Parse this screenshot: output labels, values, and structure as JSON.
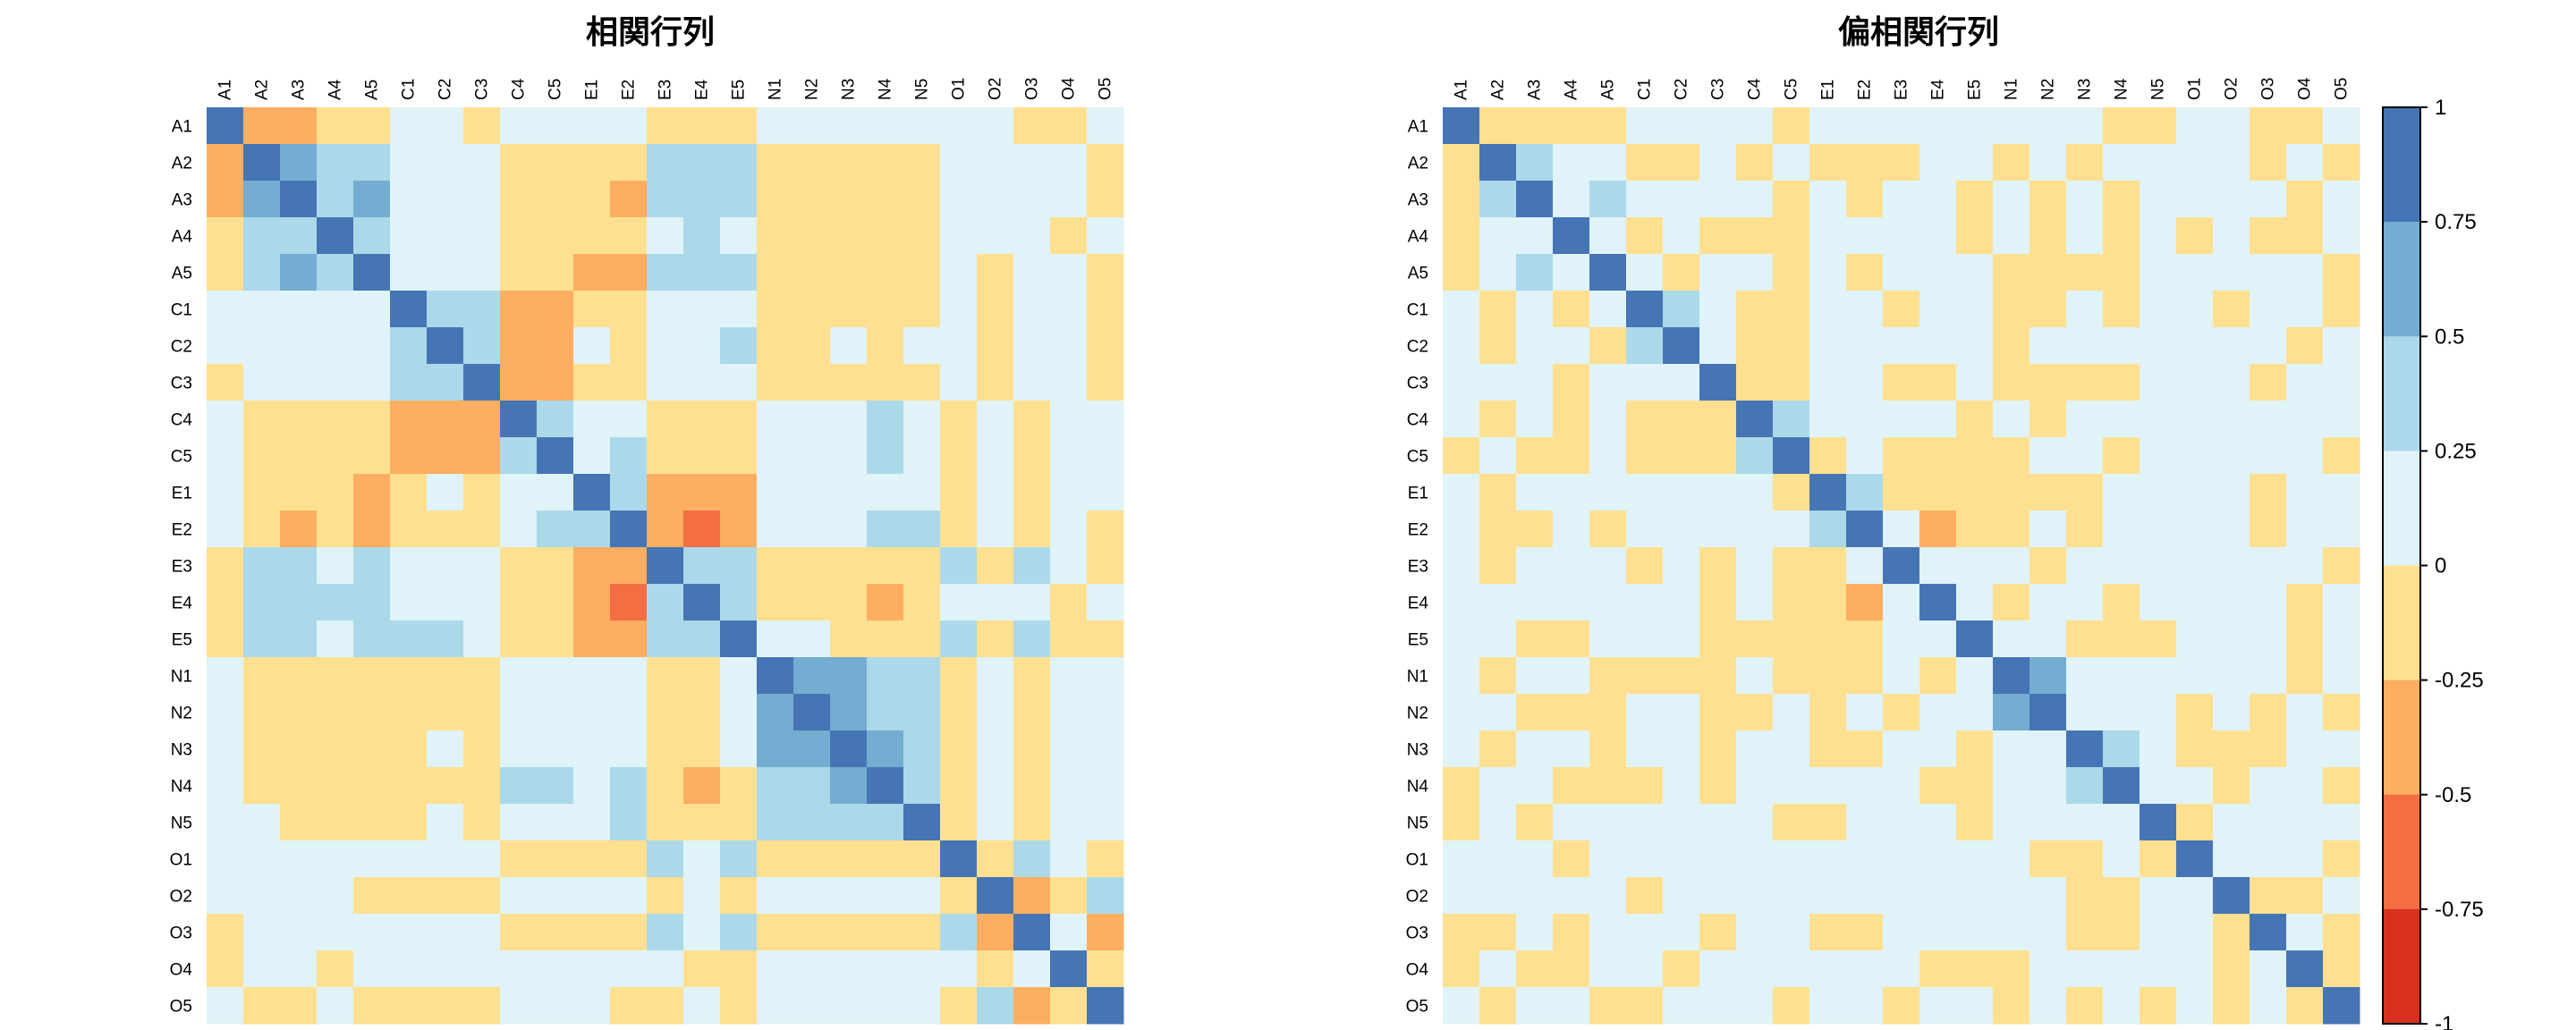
{
  "palette": {
    "bins": [
      -1,
      -0.75,
      -0.5,
      -0.25,
      0,
      0.25,
      0.5,
      0.75,
      1
    ],
    "colors": [
      "#d7301f",
      "#f46d43",
      "#fdae61",
      "#fee090",
      "#e0f3f8",
      "#abd9e9",
      "#74add1",
      "#4575b4"
    ]
  },
  "colorbar": {
    "ticks": [
      "1",
      "0.75",
      "0.5",
      "0.25",
      "0",
      "-0.25",
      "-0.5",
      "-0.75",
      "-1"
    ]
  },
  "chart_data": [
    {
      "type": "heatmap",
      "title": "相関行列",
      "variables": [
        "A1",
        "A2",
        "A3",
        "A4",
        "A5",
        "C1",
        "C2",
        "C3",
        "C4",
        "C5",
        "E1",
        "E2",
        "E3",
        "E4",
        "E5",
        "N1",
        "N2",
        "N3",
        "N4",
        "N5",
        "O1",
        "O2",
        "O3",
        "O4",
        "O5"
      ],
      "level_scale": "binned correlation: -3 = (-0.75,-0.5], -2 = (-0.5,-0.25], -1 = (-0.25,0], 0 = (0,0.25], 1 = (0.25,0.5], 2 = (0.5,0.75], 3 = (0.75,1]",
      "levels": [
        [
          3,
          -2,
          -2,
          -1,
          -1,
          0,
          0,
          -1,
          0,
          0,
          0,
          0,
          -1,
          -1,
          -1,
          0,
          0,
          0,
          0,
          0,
          0,
          0,
          -1,
          -1,
          0
        ],
        [
          -2,
          3,
          2,
          1,
          1,
          0,
          0,
          0,
          -1,
          -1,
          -1,
          -1,
          1,
          1,
          1,
          -1,
          -1,
          -1,
          -1,
          -1,
          0,
          0,
          0,
          0,
          -1
        ],
        [
          -2,
          2,
          3,
          1,
          2,
          0,
          0,
          0,
          -1,
          -1,
          -1,
          -2,
          1,
          1,
          1,
          -1,
          -1,
          -1,
          -1,
          -1,
          0,
          0,
          0,
          0,
          -1
        ],
        [
          -1,
          1,
          1,
          3,
          1,
          0,
          0,
          0,
          -1,
          -1,
          -1,
          -1,
          0,
          1,
          0,
          -1,
          -1,
          -1,
          -1,
          -1,
          0,
          0,
          0,
          -1,
          0
        ],
        [
          -1,
          1,
          2,
          1,
          3,
          0,
          0,
          0,
          -1,
          -1,
          -2,
          -2,
          1,
          1,
          1,
          -1,
          -1,
          -1,
          -1,
          -1,
          0,
          -1,
          0,
          0,
          -1
        ],
        [
          0,
          0,
          0,
          0,
          0,
          3,
          1,
          1,
          -2,
          -2,
          -1,
          -1,
          0,
          0,
          0,
          -1,
          -1,
          -1,
          -1,
          -1,
          0,
          -1,
          0,
          0,
          -1
        ],
        [
          0,
          0,
          0,
          0,
          0,
          1,
          3,
          1,
          -2,
          -2,
          0,
          -1,
          0,
          0,
          1,
          -1,
          -1,
          0,
          -1,
          0,
          0,
          -1,
          0,
          0,
          -1
        ],
        [
          -1,
          0,
          0,
          0,
          0,
          1,
          1,
          3,
          -2,
          -2,
          -1,
          -1,
          0,
          0,
          0,
          -1,
          -1,
          -1,
          -1,
          -1,
          0,
          -1,
          0,
          0,
          -1
        ],
        [
          0,
          -1,
          -1,
          -1,
          -1,
          -2,
          -2,
          -2,
          3,
          1,
          0,
          0,
          -1,
          -1,
          -1,
          0,
          0,
          0,
          1,
          0,
          -1,
          0,
          -1,
          0,
          0
        ],
        [
          0,
          -1,
          -1,
          -1,
          -1,
          -2,
          -2,
          -2,
          1,
          3,
          0,
          1,
          -1,
          -1,
          -1,
          0,
          0,
          0,
          1,
          0,
          -1,
          0,
          -1,
          0,
          0
        ],
        [
          0,
          -1,
          -1,
          -1,
          -2,
          -1,
          0,
          -1,
          0,
          0,
          3,
          1,
          -2,
          -2,
          -2,
          0,
          0,
          0,
          0,
          0,
          -1,
          0,
          -1,
          0,
          0
        ],
        [
          0,
          -1,
          -2,
          -1,
          -2,
          -1,
          -1,
          -1,
          0,
          1,
          1,
          3,
          -2,
          -3,
          -2,
          0,
          0,
          0,
          1,
          1,
          -1,
          0,
          -1,
          0,
          -1
        ],
        [
          -1,
          1,
          1,
          0,
          1,
          0,
          0,
          0,
          -1,
          -1,
          -2,
          -2,
          3,
          1,
          1,
          -1,
          -1,
          -1,
          -1,
          -1,
          1,
          -1,
          1,
          0,
          -1
        ],
        [
          -1,
          1,
          1,
          1,
          1,
          0,
          0,
          0,
          -1,
          -1,
          -2,
          -3,
          1,
          3,
          1,
          -1,
          -1,
          -1,
          -2,
          -1,
          0,
          0,
          0,
          -1,
          0
        ],
        [
          -1,
          1,
          1,
          0,
          1,
          1,
          1,
          0,
          -1,
          -1,
          -2,
          -2,
          1,
          1,
          3,
          0,
          0,
          -1,
          -1,
          -1,
          1,
          -1,
          1,
          -1,
          -1
        ],
        [
          0,
          -1,
          -1,
          -1,
          -1,
          -1,
          -1,
          -1,
          0,
          0,
          0,
          0,
          -1,
          -1,
          0,
          3,
          2,
          2,
          1,
          1,
          -1,
          0,
          -1,
          0,
          0
        ],
        [
          0,
          -1,
          -1,
          -1,
          -1,
          -1,
          -1,
          -1,
          0,
          0,
          0,
          0,
          -1,
          -1,
          0,
          2,
          3,
          2,
          1,
          1,
          -1,
          0,
          -1,
          0,
          0
        ],
        [
          0,
          -1,
          -1,
          -1,
          -1,
          -1,
          0,
          -1,
          0,
          0,
          0,
          0,
          -1,
          -1,
          0,
          2,
          2,
          3,
          2,
          1,
          -1,
          0,
          -1,
          0,
          0
        ],
        [
          0,
          -1,
          -1,
          -1,
          -1,
          -1,
          -1,
          -1,
          1,
          1,
          0,
          1,
          -1,
          -2,
          -1,
          1,
          1,
          2,
          3,
          1,
          -1,
          0,
          -1,
          0,
          0
        ],
        [
          0,
          0,
          -1,
          -1,
          -1,
          -1,
          0,
          -1,
          0,
          0,
          0,
          1,
          -1,
          -1,
          -1,
          1,
          1,
          1,
          1,
          3,
          -1,
          0,
          -1,
          0,
          0
        ],
        [
          0,
          0,
          0,
          0,
          0,
          0,
          0,
          0,
          -1,
          -1,
          -1,
          -1,
          1,
          0,
          1,
          -1,
          -1,
          -1,
          -1,
          -1,
          3,
          -1,
          1,
          0,
          -1
        ],
        [
          0,
          0,
          0,
          0,
          -1,
          -1,
          -1,
          -1,
          0,
          0,
          0,
          0,
          -1,
          0,
          -1,
          0,
          0,
          0,
          0,
          0,
          -1,
          3,
          -2,
          -1,
          1
        ],
        [
          -1,
          0,
          0,
          0,
          0,
          0,
          0,
          0,
          -1,
          -1,
          -1,
          -1,
          1,
          0,
          1,
          -1,
          -1,
          -1,
          -1,
          -1,
          1,
          -2,
          3,
          0,
          -2
        ],
        [
          -1,
          0,
          0,
          -1,
          0,
          0,
          0,
          0,
          0,
          0,
          0,
          0,
          0,
          -1,
          -1,
          0,
          0,
          0,
          0,
          0,
          0,
          -1,
          0,
          3,
          -1
        ],
        [
          0,
          -1,
          -1,
          0,
          -1,
          -1,
          -1,
          -1,
          0,
          0,
          0,
          -1,
          -1,
          0,
          -1,
          0,
          0,
          0,
          0,
          0,
          -1,
          1,
          -2,
          -1,
          3
        ]
      ]
    },
    {
      "type": "heatmap",
      "title": "偏相関行列",
      "variables": [
        "A1",
        "A2",
        "A3",
        "A4",
        "A5",
        "C1",
        "C2",
        "C3",
        "C4",
        "C5",
        "E1",
        "E2",
        "E3",
        "E4",
        "E5",
        "N1",
        "N2",
        "N3",
        "N4",
        "N5",
        "O1",
        "O2",
        "O3",
        "O4",
        "O5"
      ],
      "level_scale": "binned partial correlation: -3 = (-0.75,-0.5], -2 = (-0.5,-0.25], -1 = (-0.25,0], 0 = (0,0.25], 1 = (0.25,0.5], 2 = (0.5,0.75], 3 = (0.75,1]",
      "levels": [
        [
          3,
          -1,
          -1,
          -1,
          -1,
          0,
          0,
          0,
          0,
          -1,
          0,
          0,
          0,
          0,
          0,
          0,
          0,
          0,
          -1,
          -1,
          0,
          0,
          -1,
          -1,
          0
        ],
        [
          -1,
          3,
          1,
          0,
          0,
          -1,
          -1,
          0,
          -1,
          0,
          -1,
          -1,
          -1,
          0,
          0,
          -1,
          0,
          -1,
          0,
          0,
          0,
          0,
          -1,
          0,
          -1
        ],
        [
          -1,
          1,
          3,
          0,
          1,
          0,
          0,
          0,
          0,
          -1,
          0,
          -1,
          0,
          0,
          -1,
          0,
          -1,
          0,
          -1,
          0,
          0,
          0,
          0,
          -1,
          0
        ],
        [
          -1,
          0,
          0,
          3,
          0,
          -1,
          0,
          -1,
          -1,
          -1,
          0,
          0,
          0,
          0,
          -1,
          0,
          -1,
          0,
          -1,
          0,
          -1,
          0,
          -1,
          -1,
          0
        ],
        [
          -1,
          0,
          1,
          0,
          3,
          0,
          -1,
          0,
          0,
          -1,
          0,
          -1,
          0,
          0,
          0,
          -1,
          -1,
          -1,
          -1,
          0,
          0,
          0,
          0,
          0,
          -1
        ],
        [
          0,
          -1,
          0,
          -1,
          0,
          3,
          1,
          0,
          -1,
          -1,
          0,
          0,
          -1,
          0,
          0,
          -1,
          -1,
          0,
          -1,
          0,
          0,
          -1,
          0,
          0,
          -1
        ],
        [
          0,
          -1,
          0,
          0,
          -1,
          1,
          3,
          0,
          -1,
          -1,
          0,
          0,
          0,
          0,
          0,
          -1,
          0,
          0,
          0,
          0,
          0,
          0,
          0,
          -1,
          0
        ],
        [
          0,
          0,
          0,
          -1,
          0,
          0,
          0,
          3,
          -1,
          -1,
          0,
          0,
          -1,
          -1,
          0,
          -1,
          -1,
          -1,
          -1,
          0,
          0,
          0,
          -1,
          0,
          0
        ],
        [
          0,
          -1,
          0,
          -1,
          0,
          -1,
          -1,
          -1,
          3,
          1,
          0,
          0,
          0,
          0,
          -1,
          0,
          -1,
          0,
          0,
          0,
          0,
          0,
          0,
          0,
          0
        ],
        [
          -1,
          0,
          -1,
          -1,
          0,
          -1,
          -1,
          -1,
          1,
          3,
          -1,
          0,
          -1,
          -1,
          -1,
          -1,
          0,
          0,
          -1,
          0,
          0,
          0,
          0,
          0,
          -1
        ],
        [
          0,
          -1,
          0,
          0,
          0,
          0,
          0,
          0,
          0,
          -1,
          3,
          1,
          -1,
          -1,
          -1,
          -1,
          -1,
          -1,
          0,
          0,
          0,
          0,
          -1,
          0,
          0
        ],
        [
          0,
          -1,
          -1,
          0,
          -1,
          0,
          0,
          0,
          0,
          0,
          1,
          3,
          0,
          -2,
          -1,
          -1,
          0,
          -1,
          0,
          0,
          0,
          0,
          -1,
          0,
          0
        ],
        [
          0,
          -1,
          0,
          0,
          0,
          -1,
          0,
          -1,
          0,
          -1,
          -1,
          0,
          3,
          0,
          0,
          0,
          -1,
          0,
          0,
          0,
          0,
          0,
          0,
          0,
          -1
        ],
        [
          0,
          0,
          0,
          0,
          0,
          0,
          0,
          -1,
          0,
          -1,
          -1,
          -2,
          0,
          3,
          0,
          -1,
          0,
          0,
          -1,
          0,
          0,
          0,
          0,
          -1,
          0
        ],
        [
          0,
          0,
          -1,
          -1,
          0,
          0,
          0,
          -1,
          -1,
          -1,
          -1,
          -1,
          0,
          0,
          3,
          0,
          0,
          -1,
          -1,
          -1,
          0,
          0,
          0,
          -1,
          0
        ],
        [
          0,
          -1,
          0,
          0,
          -1,
          -1,
          -1,
          -1,
          0,
          -1,
          -1,
          -1,
          0,
          -1,
          0,
          3,
          2,
          0,
          0,
          0,
          0,
          0,
          0,
          -1,
          0
        ],
        [
          0,
          0,
          -1,
          -1,
          -1,
          0,
          0,
          -1,
          -1,
          0,
          -1,
          0,
          -1,
          0,
          0,
          2,
          3,
          0,
          0,
          0,
          -1,
          0,
          -1,
          0,
          -1
        ],
        [
          0,
          -1,
          0,
          0,
          -1,
          0,
          0,
          -1,
          0,
          0,
          -1,
          -1,
          0,
          0,
          -1,
          0,
          0,
          3,
          1,
          0,
          -1,
          -1,
          -1,
          0,
          0
        ],
        [
          -1,
          0,
          0,
          -1,
          -1,
          -1,
          0,
          -1,
          0,
          0,
          0,
          0,
          0,
          -1,
          -1,
          0,
          0,
          1,
          3,
          0,
          0,
          -1,
          0,
          0,
          -1
        ],
        [
          -1,
          0,
          -1,
          0,
          0,
          0,
          0,
          0,
          0,
          -1,
          -1,
          0,
          0,
          0,
          -1,
          0,
          0,
          0,
          0,
          3,
          -1,
          0,
          0,
          0,
          0
        ],
        [
          0,
          0,
          0,
          -1,
          0,
          0,
          0,
          0,
          0,
          0,
          0,
          0,
          0,
          0,
          0,
          0,
          -1,
          -1,
          0,
          -1,
          3,
          0,
          0,
          0,
          -1
        ],
        [
          0,
          0,
          0,
          0,
          0,
          -1,
          0,
          0,
          0,
          0,
          0,
          0,
          0,
          0,
          0,
          0,
          0,
          -1,
          -1,
          0,
          0,
          3,
          -1,
          -1,
          0
        ],
        [
          -1,
          -1,
          0,
          -1,
          0,
          0,
          0,
          -1,
          0,
          0,
          -1,
          -1,
          0,
          0,
          0,
          0,
          0,
          -1,
          -1,
          0,
          0,
          -1,
          3,
          0,
          -1
        ],
        [
          -1,
          0,
          -1,
          -1,
          0,
          0,
          -1,
          0,
          0,
          0,
          0,
          0,
          0,
          -1,
          -1,
          -1,
          0,
          0,
          0,
          0,
          0,
          -1,
          0,
          3,
          -1
        ],
        [
          0,
          -1,
          0,
          0,
          -1,
          -1,
          0,
          0,
          0,
          -1,
          0,
          0,
          -1,
          0,
          0,
          -1,
          0,
          -1,
          0,
          -1,
          0,
          -1,
          0,
          -1,
          3
        ]
      ]
    }
  ]
}
